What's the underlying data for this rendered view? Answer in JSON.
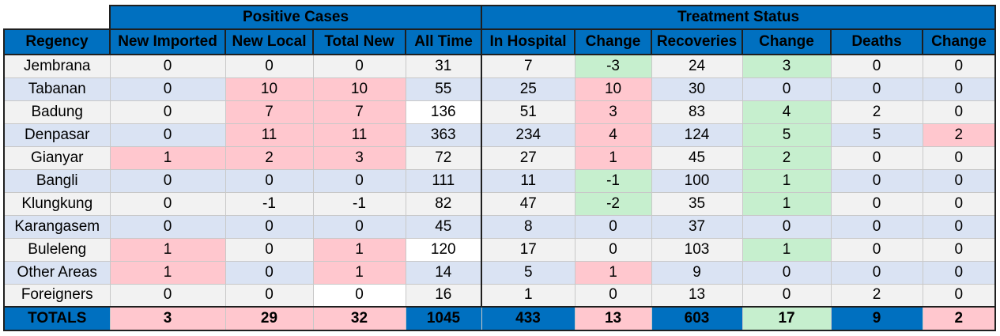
{
  "groups": {
    "positive": "Positive Cases",
    "treatment": "Treatment Status"
  },
  "columns": [
    "Regency",
    "New Imported",
    "New Local",
    "Total New",
    "All Time",
    "In Hospital",
    "Change",
    "Recoveries",
    "Change",
    "Deaths",
    "Change"
  ],
  "rows": [
    {
      "region": "Jembrana",
      "values": [
        "0",
        "0",
        "0",
        "31",
        "7",
        "-3",
        "24",
        "3",
        "0",
        "0"
      ]
    },
    {
      "region": "Tabanan",
      "values": [
        "0",
        "10",
        "10",
        "55",
        "25",
        "10",
        "30",
        "0",
        "0",
        "0"
      ]
    },
    {
      "region": "Badung",
      "values": [
        "0",
        "7",
        "7",
        "136",
        "51",
        "3",
        "83",
        "4",
        "2",
        "0"
      ]
    },
    {
      "region": "Denpasar",
      "values": [
        "0",
        "11",
        "11",
        "363",
        "234",
        "4",
        "124",
        "5",
        "5",
        "2"
      ]
    },
    {
      "region": "Gianyar",
      "values": [
        "1",
        "2",
        "3",
        "72",
        "27",
        "1",
        "45",
        "2",
        "0",
        "0"
      ]
    },
    {
      "region": "Bangli",
      "values": [
        "0",
        "0",
        "0",
        "111",
        "11",
        "-1",
        "100",
        "1",
        "0",
        "0"
      ]
    },
    {
      "region": "Klungkung",
      "values": [
        "0",
        "-1",
        "-1",
        "82",
        "47",
        "-2",
        "35",
        "1",
        "0",
        "0"
      ]
    },
    {
      "region": "Karangasem",
      "values": [
        "0",
        "0",
        "0",
        "45",
        "8",
        "0",
        "37",
        "0",
        "0",
        "0"
      ]
    },
    {
      "region": "Buleleng",
      "values": [
        "1",
        "0",
        "1",
        "120",
        "17",
        "0",
        "103",
        "1",
        "0",
        "0"
      ]
    },
    {
      "region": "Other Areas",
      "values": [
        "1",
        "0",
        "1",
        "14",
        "5",
        "1",
        "9",
        "0",
        "0",
        "0"
      ]
    },
    {
      "region": "Foreigners",
      "values": [
        "0",
        "0",
        "0",
        "16",
        "1",
        "0",
        "13",
        "0",
        "2",
        "0"
      ]
    }
  ],
  "totals": {
    "label": "TOTALS",
    "values": [
      "3",
      "29",
      "32",
      "1045",
      "433",
      "13",
      "603",
      "17",
      "9",
      "2"
    ]
  },
  "colors": {
    "header_blue": "#0070c0",
    "positive_fill": "#ffc7ce",
    "positive_text": "#9c0006",
    "negative_fill": "#c6efce",
    "negative_text": "#006100",
    "row_stripe_a": "#f2f2f2",
    "row_stripe_b": "#dae3f3"
  }
}
